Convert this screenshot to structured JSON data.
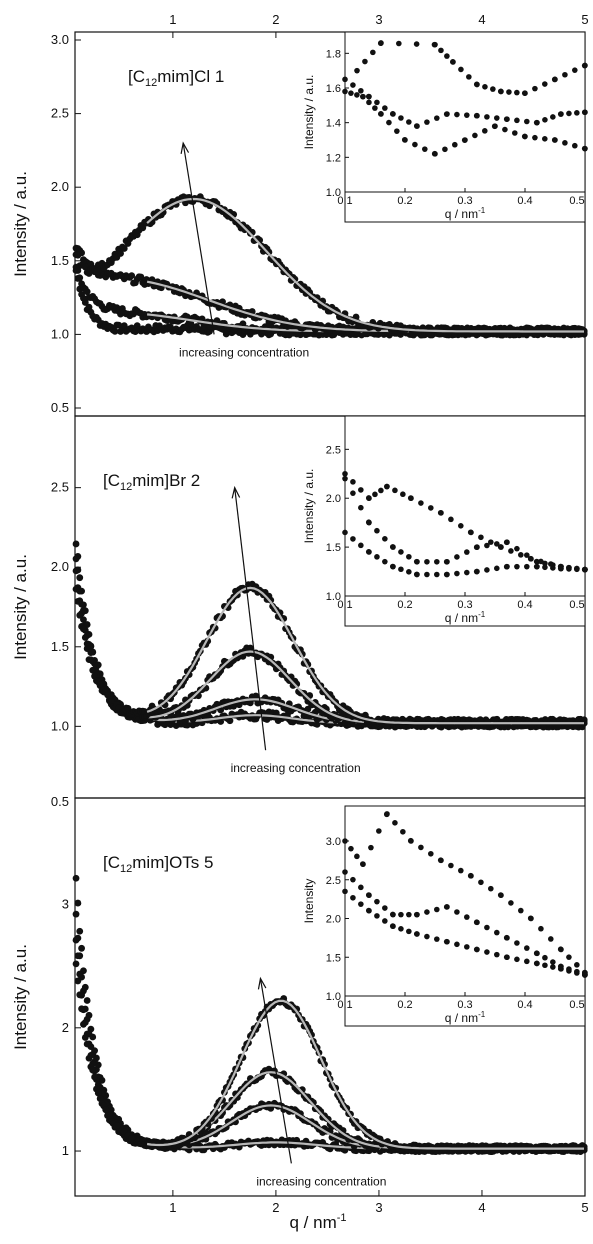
{
  "figure": {
    "top_axis_ticks": [
      "1",
      "2",
      "3",
      "4",
      "5"
    ],
    "bottom_axis_ticks": [
      "1",
      "2",
      "3",
      "4",
      "5"
    ],
    "xlabel": "q / nm",
    "xlabel_sup": "-1",
    "colors": {
      "data": "#111111",
      "fit": "#b8b8b8",
      "axis": "#111111"
    }
  },
  "chart_data": [
    {
      "type": "scatter",
      "panel_label_prefix": "[C",
      "panel_label_sub": "12",
      "panel_label_suffix": "mim]Cl 1",
      "ylabel": "Intensity / a.u.",
      "ytick_labels": [
        "0.5",
        "1.0",
        "1.5",
        "2.0",
        "2.5",
        "3.0"
      ],
      "ylim": [
        0.5,
        3.0
      ],
      "xlim": [
        0.05,
        5.0
      ],
      "annotation": "increasing concentration",
      "arrow": {
        "from": [
          1.4,
          1.0
        ],
        "to": [
          1.1,
          2.3
        ]
      },
      "series": [
        {
          "peak_q": 1.0,
          "peak_height": 0.02,
          "low_q_amp": 0.45,
          "low_q_decay": 0.12,
          "wide": 0.5,
          "fit": false
        },
        {
          "peak_q": 0.5,
          "peak_height": 0.12,
          "low_q_amp": 0.35,
          "low_q_decay": 0.15,
          "wide": 1.0,
          "fit": true
        },
        {
          "peak_q": 0.5,
          "peak_height": 0.35,
          "low_q_amp": 0.3,
          "low_q_decay": 0.15,
          "wide": 1.2,
          "fit": true
        },
        {
          "peak_q": 1.2,
          "peak_height": 0.9,
          "low_q_amp": 0.3,
          "low_q_decay": 0.12,
          "wide": 1.0,
          "fit": true
        }
      ],
      "inset": {
        "xlabel": "q / nm",
        "xlabel_sup": "-1",
        "ylabel": "Intensity / a.u.",
        "xlim": [
          0.1,
          0.5
        ],
        "ylim": [
          1.0,
          1.9
        ],
        "xtick_labels": [
          "0.1",
          "0.2",
          "0.3",
          "0.4",
          "0.5"
        ],
        "ytick_labels": [
          "1.0",
          "1.2",
          "1.4",
          "1.6",
          "1.8"
        ],
        "series": [
          {
            "x": [
              0.1,
              0.13,
              0.16,
              0.2,
              0.25,
              0.3,
              0.35,
              0.4,
              0.45,
              0.5
            ],
            "y": [
              1.58,
              1.55,
              1.45,
              1.3,
              1.22,
              1.3,
              1.38,
              1.32,
              1.3,
              1.25
            ]
          },
          {
            "x": [
              0.1,
              0.14,
              0.18,
              0.22,
              0.27,
              0.32,
              0.37,
              0.42,
              0.46,
              0.5
            ],
            "y": [
              1.65,
              1.55,
              1.45,
              1.38,
              1.45,
              1.44,
              1.42,
              1.4,
              1.45,
              1.46
            ]
          },
          {
            "x": [
              0.12,
              0.16,
              0.25,
              0.28,
              0.32,
              0.36,
              0.4,
              0.45,
              0.5
            ],
            "y": [
              1.7,
              1.86,
              1.85,
              1.75,
              1.62,
              1.58,
              1.57,
              1.65,
              1.73
            ]
          }
        ]
      }
    },
    {
      "type": "scatter",
      "panel_label_prefix": "[C",
      "panel_label_sub": "12",
      "panel_label_suffix": "mim]Br 2",
      "ylabel": "Intensity / a.u.",
      "ytick_labels": [
        "1.0",
        "1.5",
        "2.0",
        "2.5"
      ],
      "ylim": [
        0.6,
        2.9
      ],
      "xlim": [
        0.05,
        5.0
      ],
      "annotation": "increasing concentration",
      "arrow": {
        "from": [
          1.9,
          0.85
        ],
        "to": [
          1.6,
          2.5
        ]
      },
      "series": [
        {
          "peak_q": 1.8,
          "peak_height": 0.05,
          "low_q_amp": 1.2,
          "low_q_decay": 0.18,
          "wide": 0.5,
          "fit": true
        },
        {
          "peak_q": 1.8,
          "peak_height": 0.15,
          "low_q_amp": 1.1,
          "low_q_decay": 0.18,
          "wide": 0.55,
          "fit": true
        },
        {
          "peak_q": 1.75,
          "peak_height": 0.45,
          "low_q_amp": 1.0,
          "low_q_decay": 0.18,
          "wide": 0.55,
          "fit": true
        },
        {
          "peak_q": 1.75,
          "peak_height": 0.85,
          "low_q_amp": 0.9,
          "low_q_decay": 0.18,
          "wide": 0.6,
          "fit": true
        }
      ],
      "inset": {
        "xlabel": "q / nm",
        "xlabel_sup": "-1",
        "ylabel": "Intensity / a.u.",
        "xlim": [
          0.1,
          0.5
        ],
        "ylim": [
          1.0,
          2.8
        ],
        "xtick_labels": [
          "0.1",
          "0.2",
          "0.3",
          "0.4",
          "0.5"
        ],
        "ytick_labels": [
          "1.0",
          "1.5",
          "2.0",
          "2.5"
        ],
        "series": [
          {
            "x": [
              0.1,
              0.14,
              0.18,
              0.22,
              0.27,
              0.32,
              0.37,
              0.42,
              0.46,
              0.5
            ],
            "y": [
              1.65,
              1.45,
              1.3,
              1.22,
              1.22,
              1.25,
              1.3,
              1.3,
              1.28,
              1.27
            ]
          },
          {
            "x": [
              0.1,
              0.14,
              0.18,
              0.22,
              0.27,
              0.32,
              0.37,
              0.42,
              0.46,
              0.5
            ],
            "y": [
              2.2,
              1.75,
              1.5,
              1.35,
              1.35,
              1.5,
              1.55,
              1.35,
              1.3,
              1.27
            ]
          },
          {
            "x": [
              0.1,
              0.14,
              0.17,
              0.21,
              0.26,
              0.31,
              0.36,
              0.41,
              0.46,
              0.5
            ],
            "y": [
              2.25,
              2.0,
              2.12,
              2.0,
              1.85,
              1.65,
              1.5,
              1.38,
              1.3,
              1.27
            ]
          }
        ]
      }
    },
    {
      "type": "scatter",
      "panel_label_prefix": "[C",
      "panel_label_sub": "12",
      "panel_label_suffix": "mim]OTs 5",
      "ylabel": "Intensity / a.u.",
      "ytick_labels": [
        "1",
        "2",
        "3",
        "0.5"
      ],
      "ylim": [
        0.7,
        3.8
      ],
      "xlim": [
        0.05,
        5.0
      ],
      "annotation": "increasing concentration",
      "arrow": {
        "from": [
          2.15,
          0.9
        ],
        "to": [
          1.85,
          2.4
        ]
      },
      "series": [
        {
          "peak_q": 2.0,
          "peak_height": 0.05,
          "low_q_amp": 2.3,
          "low_q_decay": 0.18,
          "wide": 0.55,
          "fit": true
        },
        {
          "peak_q": 1.95,
          "peak_height": 0.35,
          "low_q_amp": 2.0,
          "low_q_decay": 0.18,
          "wide": 0.55,
          "fit": true
        },
        {
          "peak_q": 1.95,
          "peak_height": 0.62,
          "low_q_amp": 1.8,
          "low_q_decay": 0.18,
          "wide": 0.55,
          "fit": true
        },
        {
          "peak_q": 2.05,
          "peak_height": 1.2,
          "low_q_amp": 1.6,
          "low_q_decay": 0.18,
          "wide": 0.55,
          "fit": true
        }
      ],
      "inset": {
        "xlabel": "q / nm",
        "xlabel_sup": "-1",
        "ylabel": "Intensity",
        "xlim": [
          0.1,
          0.5
        ],
        "ylim": [
          1.0,
          3.4
        ],
        "xtick_labels": [
          "0.1",
          "0.2",
          "0.3",
          "0.4",
          "0.5"
        ],
        "ytick_labels": [
          "1.0",
          "1.5",
          "2.0",
          "2.5",
          "3.0"
        ],
        "series": [
          {
            "x": [
              0.1,
              0.14,
              0.18,
              0.22,
              0.27,
              0.32,
              0.37,
              0.42,
              0.46,
              0.5
            ],
            "y": [
              2.35,
              2.1,
              1.9,
              1.8,
              1.7,
              1.6,
              1.5,
              1.42,
              1.35,
              1.27
            ]
          },
          {
            "x": [
              0.1,
              0.14,
              0.18,
              0.22,
              0.27,
              0.32,
              0.37,
              0.42,
              0.46,
              0.5
            ],
            "y": [
              2.6,
              2.3,
              2.05,
              2.05,
              2.15,
              1.95,
              1.75,
              1.55,
              1.38,
              1.28
            ]
          },
          {
            "x": [
              0.1,
              0.13,
              0.17,
              0.21,
              0.26,
              0.31,
              0.36,
              0.41,
              0.46,
              0.5
            ],
            "y": [
              3.0,
              2.7,
              3.35,
              3.0,
              2.75,
              2.55,
              2.3,
              2.0,
              1.6,
              1.3
            ]
          }
        ]
      }
    }
  ]
}
